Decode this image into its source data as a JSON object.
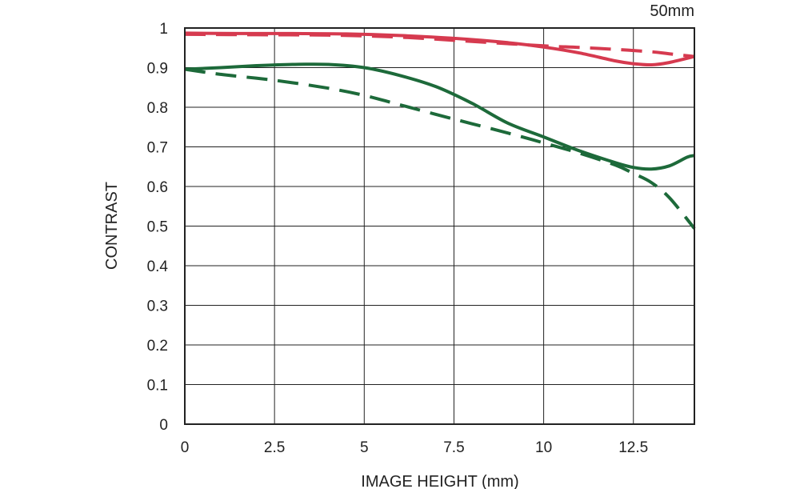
{
  "chart_data": {
    "type": "line",
    "title": "50mm",
    "xlabel": "IMAGE HEIGHT (mm)",
    "ylabel": "CONTRAST",
    "xlim": [
      0,
      14.2
    ],
    "ylim": [
      0,
      1
    ],
    "x_ticks": [
      "0",
      "2.5",
      "5",
      "7.5",
      "10",
      "12.5"
    ],
    "x_tick_values": [
      0,
      2.5,
      5,
      7.5,
      10,
      12.5
    ],
    "y_ticks": [
      "0",
      "0.1",
      "0.2",
      "0.3",
      "0.4",
      "0.5",
      "0.6",
      "0.7",
      "0.8",
      "0.9",
      "1"
    ],
    "y_tick_values": [
      0,
      0.1,
      0.2,
      0.3,
      0.4,
      0.5,
      0.6,
      0.7,
      0.8,
      0.9,
      1
    ],
    "grid": true,
    "series": [
      {
        "color": "#d63a4f",
        "dash": "solid",
        "points": [
          [
            0,
            0.987
          ],
          [
            1.5,
            0.986
          ],
          [
            3,
            0.986
          ],
          [
            4.5,
            0.985
          ],
          [
            6,
            0.981
          ],
          [
            7.5,
            0.974
          ],
          [
            9,
            0.963
          ],
          [
            10,
            0.952
          ],
          [
            11,
            0.937
          ],
          [
            12,
            0.917
          ],
          [
            12.5,
            0.91
          ],
          [
            13,
            0.907
          ],
          [
            13.5,
            0.913
          ],
          [
            14.2,
            0.928
          ]
        ]
      },
      {
        "color": "#d63a4f",
        "dash": "dashed",
        "points": [
          [
            0,
            0.984
          ],
          [
            2,
            0.983
          ],
          [
            4,
            0.982
          ],
          [
            6,
            0.977
          ],
          [
            8,
            0.966
          ],
          [
            10,
            0.955
          ],
          [
            11,
            0.951
          ],
          [
            12,
            0.946
          ],
          [
            13,
            0.94
          ],
          [
            13.5,
            0.935
          ],
          [
            14.2,
            0.928
          ]
        ]
      },
      {
        "color": "#1d6a3a",
        "dash": "solid",
        "points": [
          [
            0,
            0.896
          ],
          [
            1,
            0.9
          ],
          [
            2,
            0.905
          ],
          [
            3,
            0.908
          ],
          [
            4,
            0.908
          ],
          [
            5,
            0.9
          ],
          [
            6,
            0.88
          ],
          [
            7,
            0.852
          ],
          [
            8,
            0.81
          ],
          [
            9,
            0.76
          ],
          [
            10,
            0.725
          ],
          [
            11,
            0.69
          ],
          [
            12,
            0.66
          ],
          [
            12.5,
            0.648
          ],
          [
            13,
            0.644
          ],
          [
            13.5,
            0.652
          ],
          [
            14,
            0.674
          ],
          [
            14.2,
            0.678
          ]
        ]
      },
      {
        "color": "#1d6a3a",
        "dash": "dashed",
        "points": [
          [
            0,
            0.896
          ],
          [
            1,
            0.883
          ],
          [
            2.5,
            0.868
          ],
          [
            4,
            0.848
          ],
          [
            5,
            0.83
          ],
          [
            6,
            0.806
          ],
          [
            7.5,
            0.77
          ],
          [
            9,
            0.735
          ],
          [
            10,
            0.71
          ],
          [
            11,
            0.684
          ],
          [
            12,
            0.654
          ],
          [
            12.5,
            0.633
          ],
          [
            13,
            0.61
          ],
          [
            13.5,
            0.572
          ],
          [
            14.2,
            0.494
          ]
        ]
      }
    ]
  }
}
